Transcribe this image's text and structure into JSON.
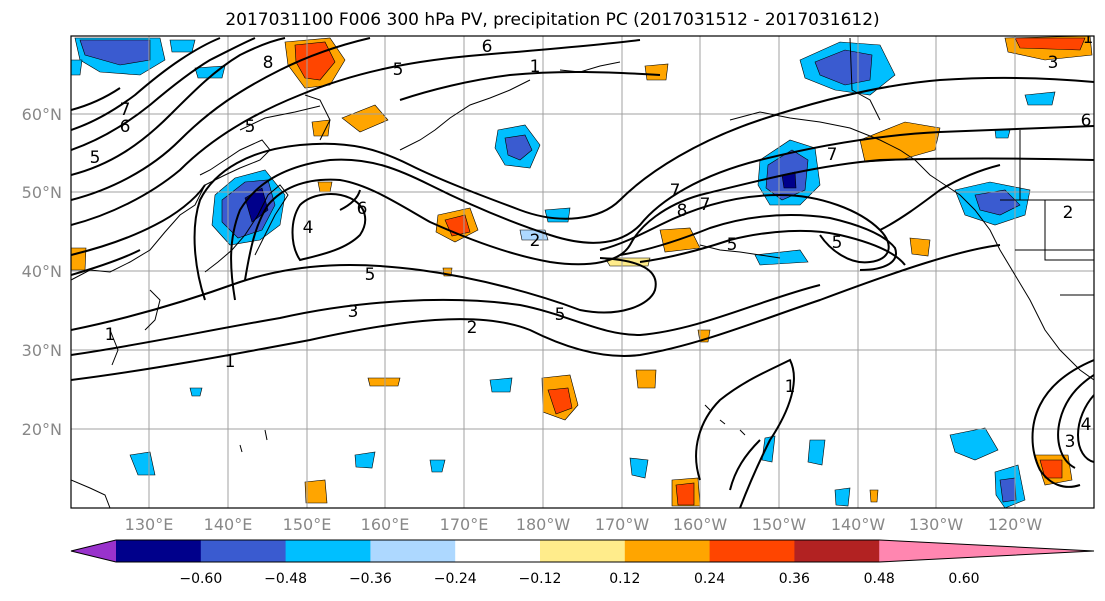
{
  "title": "2017031100 F006 300 hPa PV, precipitation PC (2017031512 - 2017031612)",
  "map": {
    "lat_labels": [
      "60°N",
      "50°N",
      "40°N",
      "30°N",
      "20°N"
    ],
    "lon_labels": [
      "130°E",
      "140°E",
      "150°E",
      "160°E",
      "170°E",
      "180°W",
      "170°W",
      "160°W",
      "150°W",
      "140°W",
      "130°W",
      "120°W"
    ],
    "contour_labels": [
      "8",
      "6",
      "5",
      "7",
      "6",
      "5",
      "5",
      "6",
      "4",
      "5",
      "3",
      "2",
      "1",
      "1",
      "1",
      "3",
      "4",
      "1",
      "2",
      "5",
      "7",
      "8",
      "7",
      "5",
      "6",
      "5",
      "2",
      "3",
      "1",
      "7"
    ],
    "contour_colors": {
      "line": "#000000",
      "coast": "#000000",
      "grid": "#a0a0a0"
    }
  },
  "colorbar": {
    "levels": [
      "−0.60",
      "−0.48",
      "−0.36",
      "−0.24",
      "−0.12",
      "0.12",
      "0.24",
      "0.36",
      "0.48",
      "0.60"
    ],
    "colors": [
      "#9932cc",
      "#00008b",
      "#3a5bd0",
      "#00bfff",
      "#add8ff",
      "#ffffff",
      "#ffec8b",
      "#ffa500",
      "#ff4500",
      "#b22222",
      "#ff86b0"
    ]
  }
}
